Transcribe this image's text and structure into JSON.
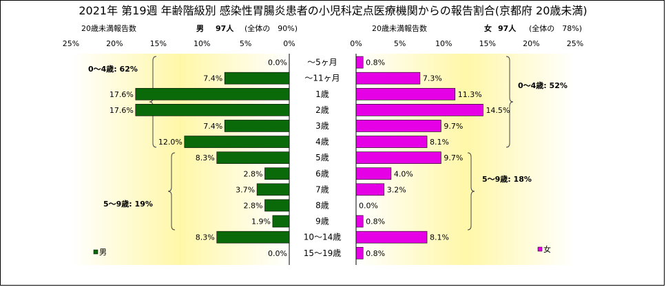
{
  "title": "2021年 第19週 年齢階級別 感染性胃腸炎患者の小児科定点医療機関からの報告割合(京都府 20歳未満)",
  "chart_data": {
    "type": "bar",
    "title": "2021年 第19週 年齢階級別 感染性胃腸炎患者の小児科定点医療機関からの報告割合(京都府 20歳未満)",
    "categories": [
      "～5ヶ月",
      "～11ヶ月",
      "1歳",
      "2歳",
      "3歳",
      "4歳",
      "5歳",
      "6歳",
      "7歳",
      "8歳",
      "9歳",
      "10～14歳",
      "15～19歳"
    ],
    "xlim": [
      0,
      25
    ],
    "ticks": [
      "0%",
      "5%",
      "10%",
      "15%",
      "20%",
      "25%"
    ],
    "left_panel": {
      "header_label": "20歳未満報告数",
      "header_sex": "男",
      "header_count": "97人",
      "header_share": "(全体の　90%)",
      "legend": "男",
      "color": "#0a6a0a",
      "values": [
        0.0,
        7.4,
        17.6,
        17.6,
        7.4,
        12.0,
        8.3,
        2.8,
        3.7,
        2.8,
        1.9,
        8.3,
        0.0
      ],
      "labels": [
        "0.0%",
        "7.4%",
        "17.6%",
        "17.6%",
        "7.4%",
        "12.0%",
        "8.3%",
        "2.8%",
        "3.7%",
        "2.8%",
        "1.9%",
        "8.3%",
        "0.0%"
      ],
      "group_labels": [
        "0～4歳: 62%",
        "5～9歳: 19%"
      ]
    },
    "right_panel": {
      "header_label": "20歳未満報告数",
      "header_sex": "女",
      "header_count": "97人",
      "header_share": "(全体の　78%)",
      "legend": "女",
      "color": "#e600e6",
      "values": [
        0.8,
        7.3,
        11.3,
        14.5,
        9.7,
        8.1,
        9.7,
        4.0,
        3.2,
        0.0,
        0.8,
        8.1,
        0.8
      ],
      "labels": [
        "0.8%",
        "7.3%",
        "11.3%",
        "14.5%",
        "9.7%",
        "8.1%",
        "9.7%",
        "4.0%",
        "3.2%",
        "0.0%",
        "0.8%",
        "8.1%",
        "0.8%"
      ],
      "group_labels": [
        "0～4歳: 52%",
        "5～9歳: 18%"
      ]
    }
  }
}
